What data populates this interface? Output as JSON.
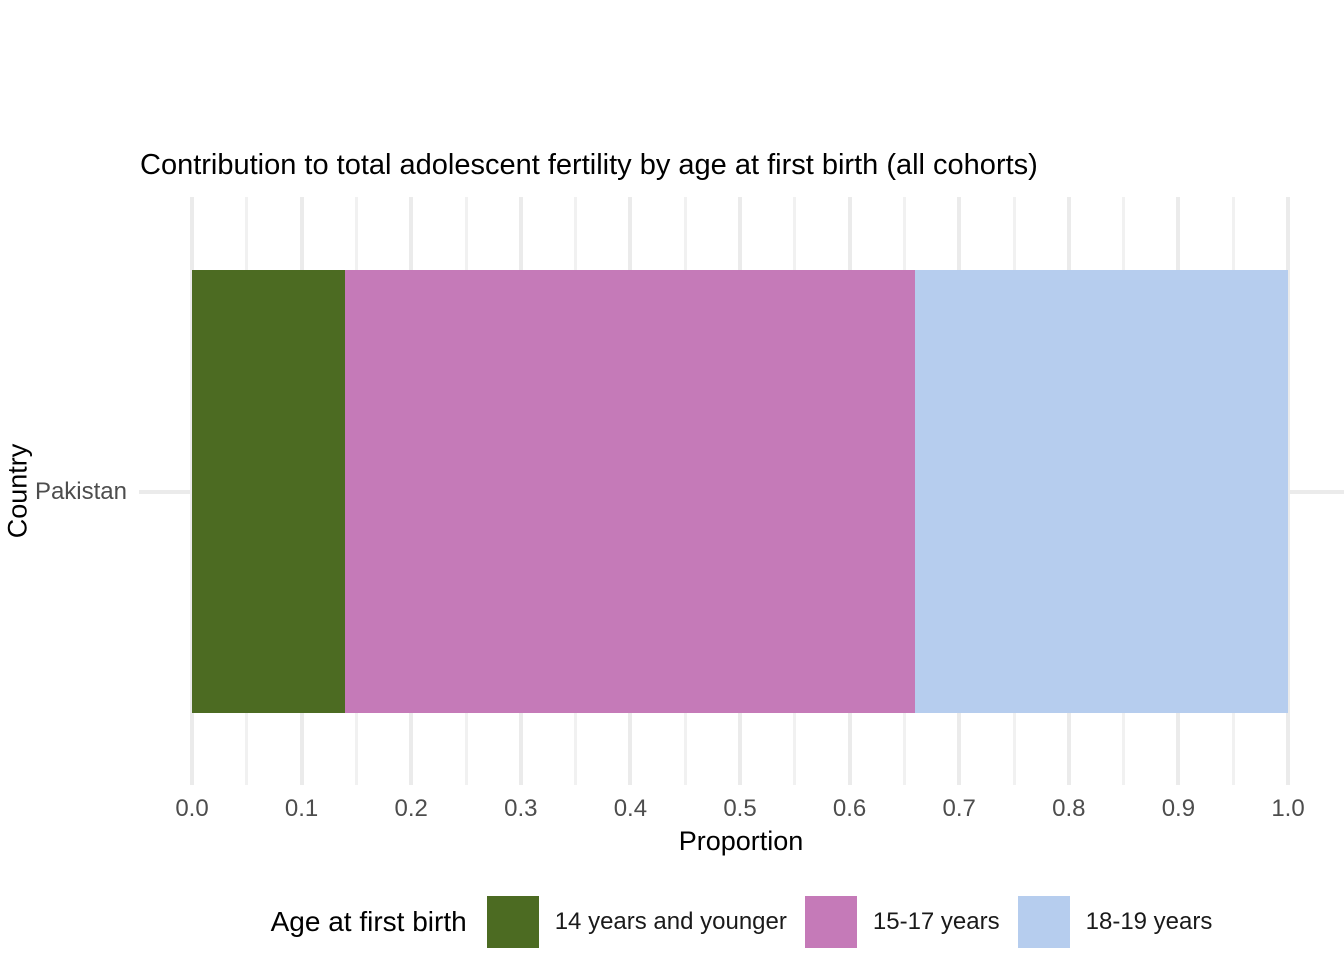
{
  "figure": {
    "background": "#ffffff"
  },
  "chart_data": {
    "type": "bar",
    "orientation": "horizontal",
    "stacked": true,
    "title": "Contribution to total adolescent fertility by age at first birth (all cohorts)",
    "xlabel": "Proportion",
    "ylabel": "Country",
    "categories": [
      "Pakistan"
    ],
    "series": [
      {
        "name": "14 years and younger",
        "color": "#4c6b22",
        "values": [
          0.14
        ]
      },
      {
        "name": "15-17 years",
        "color": "#c57ab8",
        "values": [
          0.52
        ]
      },
      {
        "name": "18-19 years",
        "color": "#b6cdee",
        "values": [
          0.34
        ]
      }
    ],
    "xlim": [
      0.0,
      1.0
    ],
    "x_tick_labels": [
      "0.0",
      "0.1",
      "0.2",
      "0.3",
      "0.4",
      "0.5",
      "0.6",
      "0.7",
      "0.8",
      "0.9",
      "1.0"
    ],
    "x_major_step": 0.1,
    "x_minor_step": 0.05,
    "grid": "on",
    "legend": {
      "title": "Age at first birth",
      "position": "bottom"
    },
    "colors": {
      "grid_major": "#ebebeb",
      "grid_minor": "#f1f1f1",
      "tick_label": "#4d4d4d",
      "text": "#000000"
    }
  }
}
